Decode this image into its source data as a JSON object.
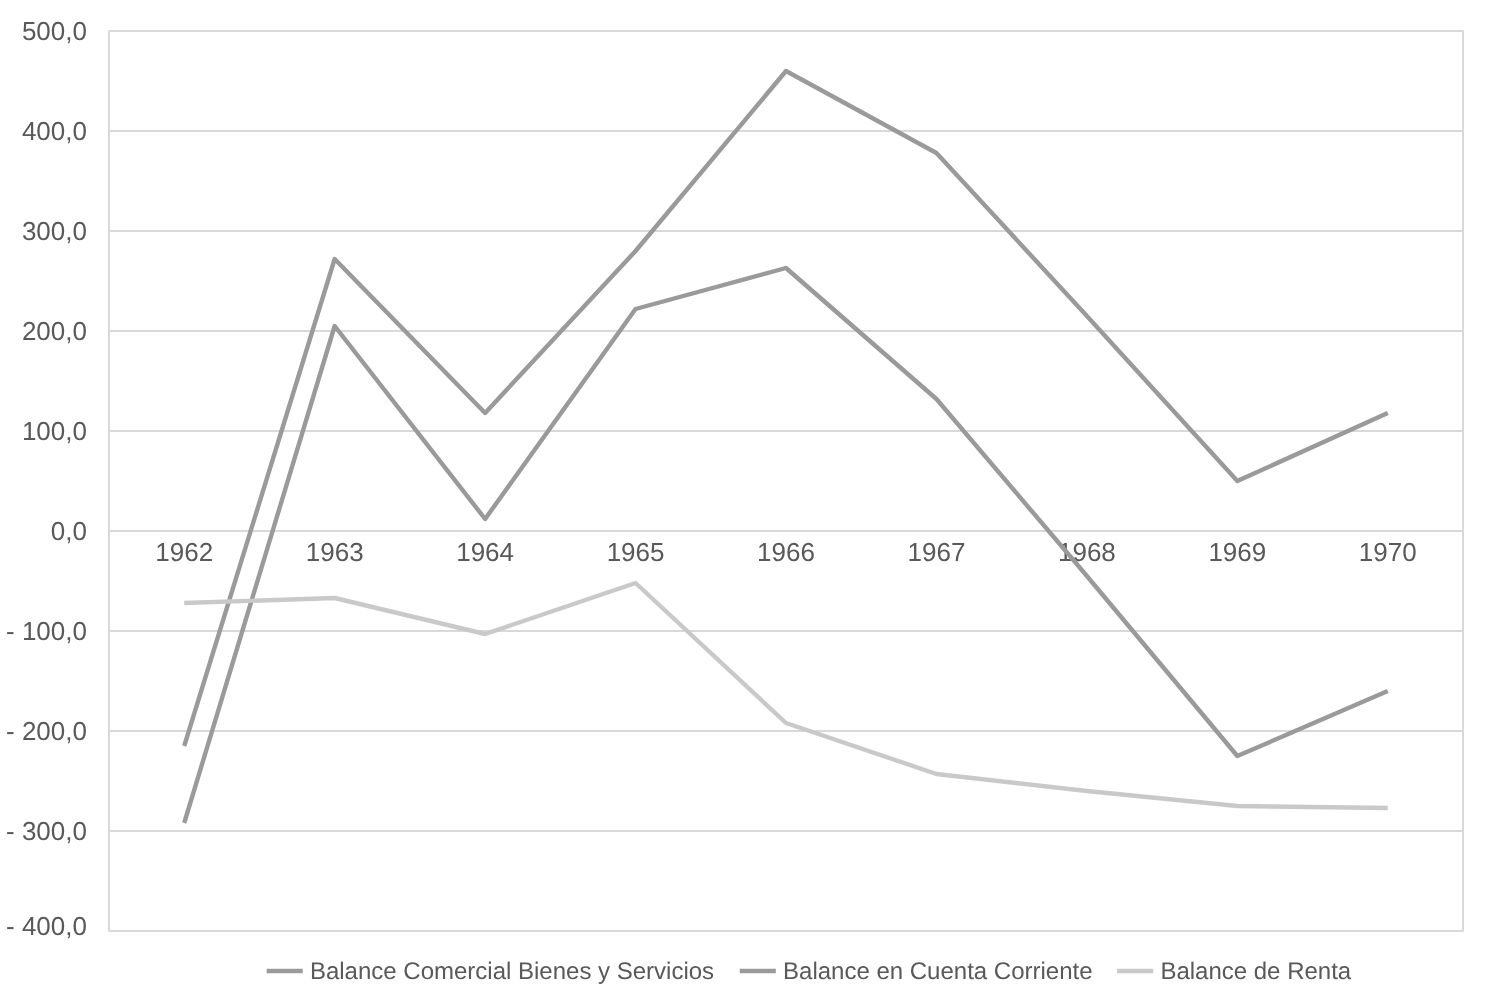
{
  "chart_data": {
    "type": "line",
    "categories": [
      "1962",
      "1963",
      "1964",
      "1965",
      "1966",
      "1967",
      "1968",
      "1969",
      "1970"
    ],
    "series": [
      {
        "name": "Balance Comercial Bienes y Servicios",
        "color": "#9a9a9a",
        "values": [
          -215,
          272,
          118,
          280,
          460,
          378,
          215,
          50,
          118
        ]
      },
      {
        "name": "Balance en Cuenta Corriente",
        "color": "#9a9a9a",
        "values": [
          -292,
          205,
          12,
          222,
          263,
          132,
          -45,
          -225,
          -160
        ]
      },
      {
        "name": "Balance de Renta",
        "color": "#c9c9c9",
        "values": [
          -72,
          -67,
          -103,
          -52,
          -192,
          -243,
          -260,
          -275,
          -277
        ]
      }
    ],
    "ylim": [
      -400,
      500
    ],
    "yticks": [
      {
        "value": -400,
        "label": "- 400,0"
      },
      {
        "value": -300,
        "label": "- 300,0"
      },
      {
        "value": -200,
        "label": "- 200,0"
      },
      {
        "value": -100,
        "label": "- 100,0"
      },
      {
        "value": 0,
        "label": "0,0"
      },
      {
        "value": 100,
        "label": "100,0"
      },
      {
        "value": 200,
        "label": "200,0"
      },
      {
        "value": 300,
        "label": "300,0"
      },
      {
        "value": 400,
        "label": "400,0"
      },
      {
        "value": 500,
        "label": "500,0"
      }
    ],
    "grid": "y",
    "legend": "bottom",
    "marker": "none",
    "line_style": "solid"
  }
}
